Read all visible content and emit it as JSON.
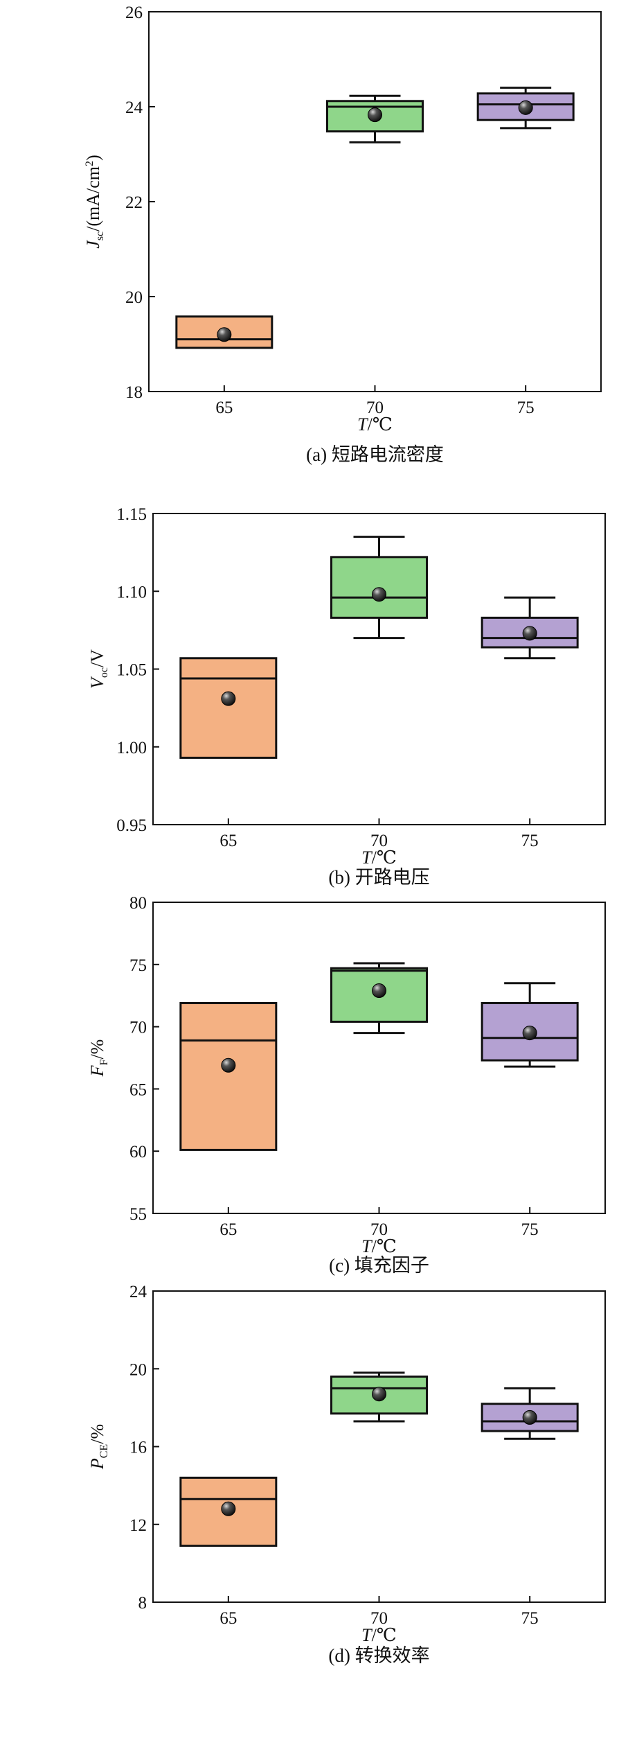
{
  "figure": {
    "panels": [
      {
        "caption": "(a) 短路电流密度"
      },
      {
        "caption": "(b) 开路电压"
      },
      {
        "caption": "(c) 填充因子"
      },
      {
        "caption": "(d) 转换效率"
      }
    ]
  },
  "chart_data": [
    {
      "type": "box",
      "caption": "(a) 短路电流密度",
      "categories": [
        "65",
        "70",
        "75"
      ],
      "xlabel": {
        "main": "T",
        "unit": "/℃"
      },
      "ylabel": {
        "main": "J",
        "sub": "sc",
        "unit": "/(mA/cm",
        "sup": "2",
        "close": ")"
      },
      "ylim": [
        18,
        26
      ],
      "yticks": [
        18,
        20,
        22,
        24,
        26
      ],
      "ytick_labels": [
        "18",
        "20",
        "22",
        "24",
        "26"
      ],
      "colors": [
        "#f4b183",
        "#8fd68a",
        "#b4a1d2"
      ],
      "boxes": [
        {
          "category": "65",
          "min": 18.92,
          "q1": 18.92,
          "median": 19.1,
          "q3": 19.58,
          "max": 19.58,
          "mean": 19.2
        },
        {
          "category": "70",
          "min": 23.25,
          "q1": 23.48,
          "median": 24.0,
          "q3": 24.12,
          "max": 24.23,
          "mean": 23.83
        },
        {
          "category": "75",
          "min": 23.55,
          "q1": 23.72,
          "median": 24.05,
          "q3": 24.28,
          "max": 24.4,
          "mean": 23.98
        }
      ]
    },
    {
      "type": "box",
      "caption": "(b) 开路电压",
      "categories": [
        "65",
        "70",
        "75"
      ],
      "xlabel": {
        "main": "T",
        "unit": "/℃"
      },
      "ylabel": {
        "main": "V",
        "sub": "oc",
        "unit": "/V"
      },
      "ylim": [
        0.95,
        1.15
      ],
      "yticks": [
        0.95,
        1.0,
        1.05,
        1.1,
        1.15
      ],
      "ytick_labels": [
        "0.95",
        "1.00",
        "1.05",
        "1.10",
        "1.15"
      ],
      "colors": [
        "#f4b183",
        "#8fd68a",
        "#b4a1d2"
      ],
      "boxes": [
        {
          "category": "65",
          "min": 0.993,
          "q1": 0.993,
          "median": 1.044,
          "q3": 1.057,
          "max": 1.057,
          "mean": 1.031
        },
        {
          "category": "70",
          "min": 1.07,
          "q1": 1.083,
          "median": 1.096,
          "q3": 1.122,
          "max": 1.135,
          "mean": 1.098
        },
        {
          "category": "75",
          "min": 1.057,
          "q1": 1.064,
          "median": 1.07,
          "q3": 1.083,
          "max": 1.096,
          "mean": 1.073
        }
      ]
    },
    {
      "type": "box",
      "caption": "(c) 填充因子",
      "categories": [
        "65",
        "70",
        "75"
      ],
      "xlabel": {
        "main": "T",
        "unit": "/℃"
      },
      "ylabel": {
        "main": "F",
        "sub": "F",
        "unit": "/%"
      },
      "ylim": [
        55,
        80
      ],
      "yticks": [
        55,
        60,
        65,
        70,
        75,
        80
      ],
      "ytick_labels": [
        "55",
        "60",
        "65",
        "70",
        "75",
        "80"
      ],
      "colors": [
        "#f4b183",
        "#8fd68a",
        "#b4a1d2"
      ],
      "boxes": [
        {
          "category": "65",
          "min": 60.1,
          "q1": 60.1,
          "median": 68.9,
          "q3": 71.9,
          "max": 71.9,
          "mean": 66.9
        },
        {
          "category": "70",
          "min": 69.5,
          "q1": 70.4,
          "median": 74.5,
          "q3": 74.7,
          "max": 75.1,
          "mean": 72.9
        },
        {
          "category": "75",
          "min": 66.8,
          "q1": 67.3,
          "median": 69.1,
          "q3": 71.9,
          "max": 73.5,
          "mean": 69.5
        }
      ]
    },
    {
      "type": "box",
      "caption": "(d) 转换效率",
      "categories": [
        "65",
        "70",
        "75"
      ],
      "xlabel": {
        "main": "T",
        "unit": "/℃"
      },
      "ylabel": {
        "main": "P",
        "sub": "CE",
        "unit": "/%"
      },
      "ylim": [
        8,
        24
      ],
      "yticks": [
        8,
        12,
        16,
        20,
        24
      ],
      "ytick_labels": [
        "8",
        "12",
        "16",
        "20",
        "24"
      ],
      "colors": [
        "#f4b183",
        "#8fd68a",
        "#b4a1d2"
      ],
      "boxes": [
        {
          "category": "65",
          "min": 10.9,
          "q1": 10.9,
          "median": 13.3,
          "q3": 14.4,
          "max": 14.4,
          "mean": 12.8
        },
        {
          "category": "70",
          "min": 17.3,
          "q1": 17.7,
          "median": 19.0,
          "q3": 19.6,
          "max": 19.8,
          "mean": 18.7
        },
        {
          "category": "75",
          "min": 16.4,
          "q1": 16.8,
          "median": 17.3,
          "q3": 18.2,
          "max": 19.0,
          "mean": 17.5
        }
      ]
    }
  ]
}
